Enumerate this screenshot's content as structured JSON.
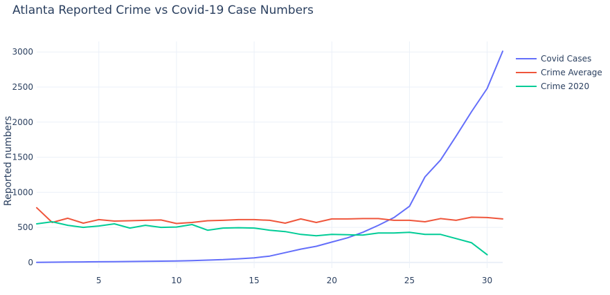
{
  "chart_data": {
    "type": "line",
    "title": "Atlanta Reported Crime vs Covid-19 Case Numbers",
    "xlabel": "",
    "ylabel": "Reported numbers",
    "xlim": [
      1,
      31
    ],
    "ylim": [
      -80,
      3150
    ],
    "x_ticks": [
      5,
      10,
      15,
      20,
      25,
      30
    ],
    "y_ticks": [
      0,
      500,
      1000,
      1500,
      2000,
      2500,
      3000
    ],
    "grid": true,
    "legend_position": "top-right",
    "x": [
      1,
      2,
      3,
      4,
      5,
      6,
      7,
      8,
      9,
      10,
      11,
      12,
      13,
      14,
      15,
      16,
      17,
      18,
      19,
      20,
      21,
      22,
      23,
      24,
      25,
      26,
      27,
      28,
      29,
      30,
      31
    ],
    "series": [
      {
        "name": "Covid Cases",
        "color": "#636efa",
        "values": [
          2,
          4,
          6,
          8,
          10,
          12,
          14,
          16,
          18,
          20,
          25,
          33,
          40,
          52,
          66,
          90,
          140,
          190,
          230,
          290,
          350,
          430,
          530,
          640,
          800,
          1220,
          1460,
          1800,
          2150,
          2480,
          3010
        ]
      },
      {
        "name": "Crime Average",
        "color": "#ef553b",
        "values": [
          780,
          570,
          630,
          560,
          610,
          590,
          595,
          600,
          605,
          555,
          570,
          595,
          600,
          610,
          610,
          600,
          560,
          620,
          570,
          620,
          620,
          625,
          625,
          600,
          600,
          580,
          625,
          600,
          645,
          640,
          620
        ]
      },
      {
        "name": "Crime 2020",
        "color": "#00cc96",
        "values": [
          550,
          580,
          530,
          500,
          520,
          550,
          490,
          530,
          500,
          505,
          540,
          460,
          490,
          495,
          490,
          460,
          440,
          400,
          380,
          400,
          395,
          390,
          420,
          420,
          430,
          400,
          400,
          340,
          280,
          110,
          null
        ]
      }
    ]
  }
}
